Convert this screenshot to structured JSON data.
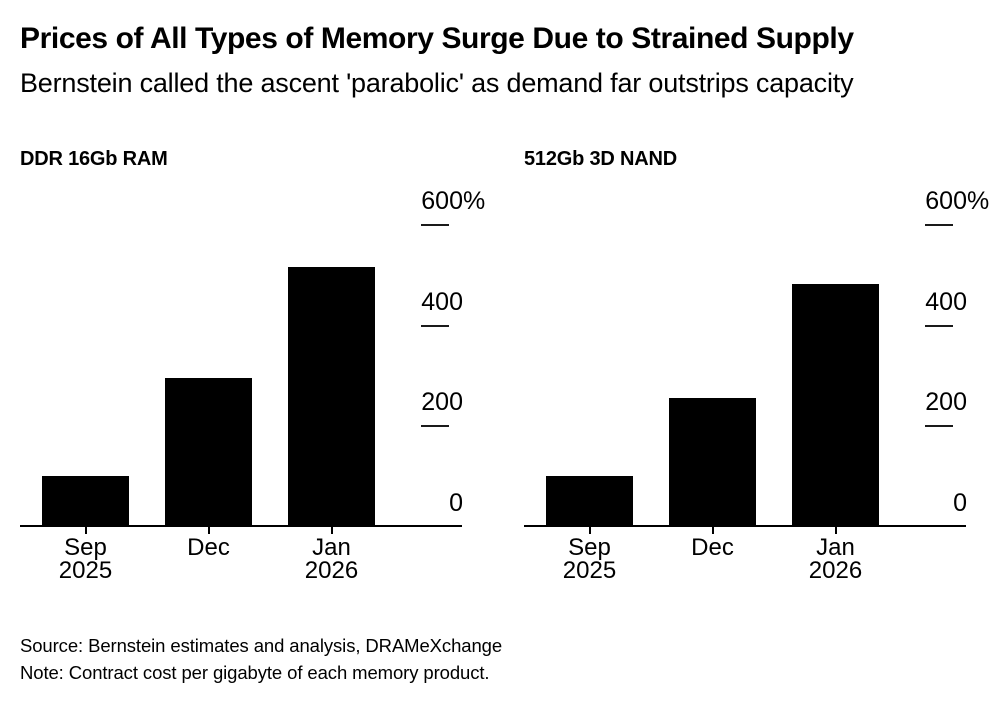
{
  "header": {
    "title": "Prices of All Types of Memory Surge Due to Strained Supply",
    "subtitle": "Bernstein called the ascent 'parabolic' as demand far outstrips capacity"
  },
  "chart_data": [
    {
      "type": "bar",
      "title": "DDR 16Gb RAM",
      "categories": [
        "Sep 2025",
        "Dec",
        "Jan 2026"
      ],
      "category_lines": [
        {
          "label": "Sep",
          "sub": "2025"
        },
        {
          "label": "Dec",
          "sub": ""
        },
        {
          "label": "Jan",
          "sub": "2026"
        }
      ],
      "values": [
        100,
        295,
        515
      ],
      "unit": "%",
      "ylim": [
        0,
        600
      ],
      "yticks": [
        {
          "value": 600,
          "label": "600",
          "suffix": "%"
        },
        {
          "value": 400,
          "label": "400",
          "suffix": ""
        },
        {
          "value": 200,
          "label": "200",
          "suffix": ""
        },
        {
          "value": 0,
          "label": "0",
          "suffix": ""
        }
      ],
      "bar_color": "#000000",
      "grid": "off",
      "legend": "none",
      "yaxis_position": "right"
    },
    {
      "type": "bar",
      "title": "512Gb 3D NAND",
      "categories": [
        "Sep 2025",
        "Dec",
        "Jan 2026"
      ],
      "category_lines": [
        {
          "label": "Sep",
          "sub": "2025"
        },
        {
          "label": "Dec",
          "sub": ""
        },
        {
          "label": "Jan",
          "sub": "2026"
        }
      ],
      "values": [
        100,
        255,
        480
      ],
      "unit": "%",
      "ylim": [
        0,
        600
      ],
      "yticks": [
        {
          "value": 600,
          "label": "600",
          "suffix": "%"
        },
        {
          "value": 400,
          "label": "400",
          "suffix": ""
        },
        {
          "value": 200,
          "label": "200",
          "suffix": ""
        },
        {
          "value": 0,
          "label": "0",
          "suffix": ""
        }
      ],
      "bar_color": "#000000",
      "grid": "off",
      "legend": "none",
      "yaxis_position": "right"
    }
  ],
  "footer": {
    "source": "Source: Bernstein estimates and analysis, DRAMeXchange",
    "note": "Note: Contract cost per gigabyte of each memory product."
  },
  "colors": {
    "background": "#ffffff",
    "text": "#000000",
    "bar": "#000000",
    "tick_line": "#1a1a1a"
  }
}
